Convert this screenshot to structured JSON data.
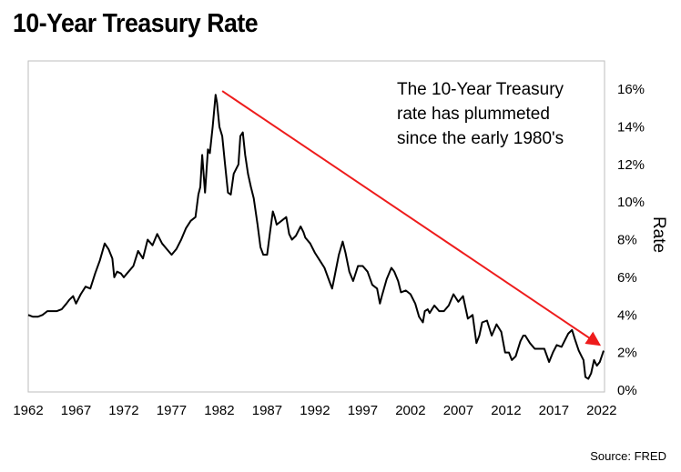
{
  "chart_data": {
    "type": "line",
    "title": "10-Year Treasury Rate",
    "ylabel": "Rate",
    "xlabel": "",
    "xlim": [
      1962,
      2022.3
    ],
    "ylim": [
      0,
      17.5
    ],
    "x_ticks": [
      "1962",
      "1967",
      "1972",
      "1977",
      "1982",
      "1987",
      "1992",
      "1997",
      "2002",
      "2007",
      "2012",
      "2017",
      "2022"
    ],
    "y_ticks": [
      "0%",
      "2%",
      "4%",
      "6%",
      "8%",
      "10%",
      "12%",
      "14%",
      "16%"
    ],
    "grid": false,
    "axis_side_y": "right",
    "series": [
      {
        "color": "#000000",
        "x": [
          1962.0,
          1962.5,
          1963.0,
          1963.5,
          1964.0,
          1964.5,
          1965.0,
          1965.5,
          1966.0,
          1966.3,
          1966.7,
          1967.0,
          1967.5,
          1968.0,
          1968.5,
          1969.0,
          1969.5,
          1970.0,
          1970.4,
          1970.8,
          1971.0,
          1971.3,
          1971.7,
          1972.0,
          1972.5,
          1973.0,
          1973.5,
          1974.0,
          1974.5,
          1975.0,
          1975.5,
          1976.0,
          1976.5,
          1977.0,
          1977.5,
          1978.0,
          1978.5,
          1979.0,
          1979.5,
          1979.8,
          1980.0,
          1980.2,
          1980.5,
          1980.8,
          1981.0,
          1981.3,
          1981.6,
          1981.75,
          1982.0,
          1982.3,
          1982.6,
          1982.9,
          1983.2,
          1983.5,
          1983.8,
          1984.0,
          1984.2,
          1984.45,
          1984.7,
          1985.0,
          1985.3,
          1985.6,
          1986.0,
          1986.3,
          1986.6,
          1987.0,
          1987.3,
          1987.6,
          1987.8,
          1988.0,
          1988.5,
          1989.0,
          1989.3,
          1989.6,
          1990.0,
          1990.5,
          1990.8,
          1991.0,
          1991.5,
          1992.0,
          1992.5,
          1993.0,
          1993.5,
          1993.8,
          1994.0,
          1994.5,
          1994.9,
          1995.2,
          1995.6,
          1996.0,
          1996.5,
          1997.0,
          1997.5,
          1998.0,
          1998.5,
          1998.8,
          1999.0,
          1999.5,
          2000.0,
          2000.3,
          2000.7,
          2001.0,
          2001.5,
          2002.0,
          2002.5,
          2002.9,
          2003.3,
          2003.5,
          2003.8,
          2004.0,
          2004.5,
          2005.0,
          2005.5,
          2006.0,
          2006.5,
          2007.0,
          2007.5,
          2008.0,
          2008.5,
          2008.9,
          2009.2,
          2009.5,
          2010.0,
          2010.5,
          2011.0,
          2011.5,
          2011.9,
          2012.3,
          2012.6,
          2013.0,
          2013.5,
          2013.8,
          2014.0,
          2014.5,
          2015.0,
          2015.5,
          2016.0,
          2016.5,
          2016.9,
          2017.3,
          2017.8,
          2018.2,
          2018.5,
          2018.9,
          2019.2,
          2019.6,
          2019.9,
          2020.1,
          2020.3,
          2020.6,
          2020.9,
          2021.2,
          2021.5,
          2021.8,
          2022.0,
          2022.2
        ],
        "y": [
          4.0,
          3.9,
          3.9,
          4.0,
          4.2,
          4.2,
          4.2,
          4.3,
          4.6,
          4.8,
          5.0,
          4.6,
          5.1,
          5.5,
          5.4,
          6.2,
          6.9,
          7.8,
          7.5,
          7.0,
          6.0,
          6.3,
          6.2,
          6.0,
          6.3,
          6.6,
          7.4,
          7.0,
          8.0,
          7.7,
          8.3,
          7.8,
          7.5,
          7.2,
          7.5,
          8.0,
          8.6,
          9.0,
          9.2,
          10.4,
          10.8,
          12.5,
          10.5,
          12.8,
          12.6,
          14.0,
          15.7,
          15.3,
          14.0,
          13.5,
          12.0,
          10.5,
          10.4,
          11.5,
          11.8,
          12.0,
          13.5,
          13.7,
          12.5,
          11.5,
          10.8,
          10.2,
          8.8,
          7.6,
          7.2,
          7.2,
          8.4,
          9.5,
          9.2,
          8.8,
          9.0,
          9.2,
          8.3,
          8.0,
          8.2,
          8.7,
          8.4,
          8.1,
          7.8,
          7.3,
          6.9,
          6.5,
          5.8,
          5.4,
          5.9,
          7.2,
          7.9,
          7.3,
          6.3,
          5.8,
          6.6,
          6.6,
          6.3,
          5.6,
          5.4,
          4.6,
          5.0,
          5.9,
          6.5,
          6.3,
          5.8,
          5.2,
          5.3,
          5.1,
          4.6,
          3.9,
          3.6,
          4.2,
          4.3,
          4.1,
          4.5,
          4.2,
          4.2,
          4.5,
          5.1,
          4.7,
          5.0,
          3.8,
          4.0,
          2.5,
          2.9,
          3.6,
          3.7,
          2.9,
          3.5,
          3.1,
          2.0,
          2.0,
          1.6,
          1.8,
          2.6,
          2.9,
          2.9,
          2.5,
          2.2,
          2.2,
          2.2,
          1.5,
          2.0,
          2.4,
          2.3,
          2.7,
          3.0,
          3.2,
          2.7,
          2.1,
          1.8,
          1.6,
          0.7,
          0.6,
          0.9,
          1.6,
          1.3,
          1.5,
          1.8,
          2.1
        ]
      }
    ],
    "annotations": [
      {
        "text_lines": [
          "The 10-Year Treasury",
          "rate has plummeted",
          "since the early 1980's"
        ]
      }
    ],
    "arrow": {
      "from": [
        1982.3,
        15.9
      ],
      "to": [
        2021.8,
        2.4
      ],
      "color": "#ee1c1c"
    },
    "source": "Source: FRED"
  }
}
